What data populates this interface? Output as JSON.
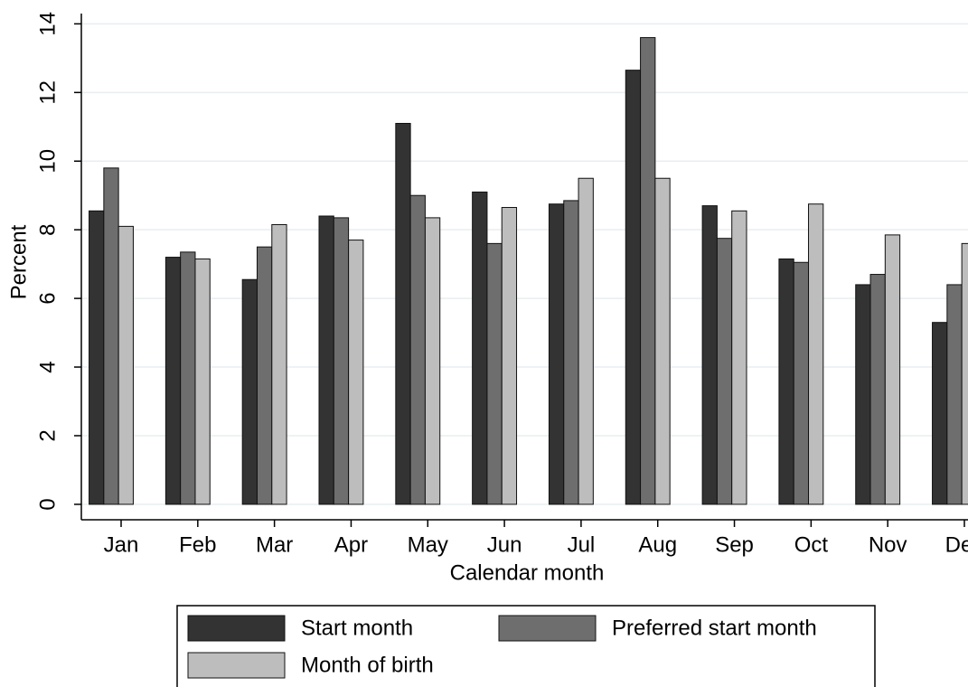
{
  "chart_data": {
    "type": "bar",
    "x_label": "Calendar month",
    "y_label": "Percent",
    "categories": [
      "Jan",
      "Feb",
      "Mar",
      "Apr",
      "May",
      "Jun",
      "Jul",
      "Aug",
      "Sep",
      "Oct",
      "Nov",
      "Dec"
    ],
    "series": [
      {
        "name": "Start month",
        "color": "#333333",
        "values": [
          8.55,
          7.2,
          6.55,
          8.4,
          11.1,
          9.1,
          8.75,
          12.65,
          8.7,
          7.15,
          6.4,
          5.3
        ]
      },
      {
        "name": "Preferred start month",
        "color": "#6e6e6e",
        "values": [
          9.8,
          7.35,
          7.5,
          8.35,
          9.0,
          7.6,
          8.85,
          13.6,
          7.75,
          7.05,
          6.7,
          6.4
        ]
      },
      {
        "name": "Month of birth",
        "color": "#bdbdbd",
        "values": [
          8.1,
          7.15,
          8.15,
          7.7,
          8.35,
          8.65,
          9.5,
          9.5,
          8.55,
          8.75,
          7.85,
          7.6
        ]
      }
    ],
    "ylim": [
      -0.45,
      14.3
    ],
    "yticks": [
      0,
      2,
      4,
      6,
      8,
      10,
      12,
      14
    ],
    "grid": true,
    "legend": "bottom"
  }
}
